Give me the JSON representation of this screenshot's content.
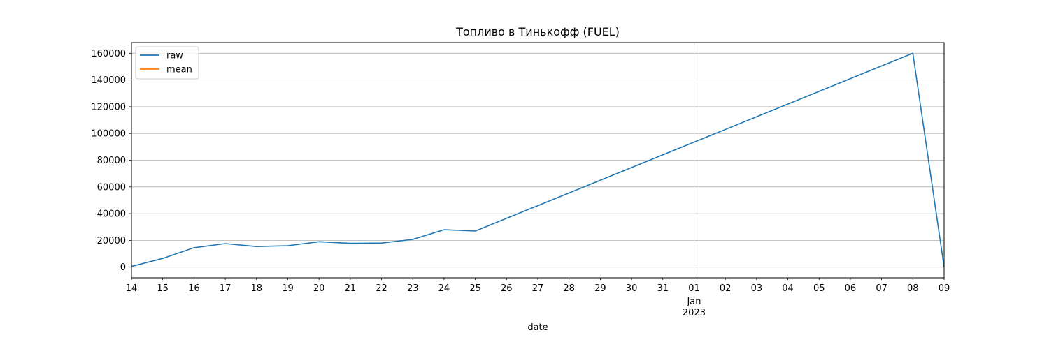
{
  "chart_data": {
    "type": "line",
    "title": "Топливо в Тинькофф (FUEL)",
    "xlabel": "date",
    "ylabel": "",
    "x_ticks": [
      {
        "date": "2022-12-14",
        "label": "14"
      },
      {
        "date": "2022-12-15",
        "label": "15"
      },
      {
        "date": "2022-12-16",
        "label": "16"
      },
      {
        "date": "2022-12-17",
        "label": "17"
      },
      {
        "date": "2022-12-18",
        "label": "18"
      },
      {
        "date": "2022-12-19",
        "label": "19"
      },
      {
        "date": "2022-12-20",
        "label": "20"
      },
      {
        "date": "2022-12-21",
        "label": "21"
      },
      {
        "date": "2022-12-22",
        "label": "22"
      },
      {
        "date": "2022-12-23",
        "label": "23"
      },
      {
        "date": "2022-12-24",
        "label": "24"
      },
      {
        "date": "2022-12-25",
        "label": "25"
      },
      {
        "date": "2022-12-26",
        "label": "26"
      },
      {
        "date": "2022-12-27",
        "label": "27"
      },
      {
        "date": "2022-12-28",
        "label": "28"
      },
      {
        "date": "2022-12-29",
        "label": "29"
      },
      {
        "date": "2022-12-30",
        "label": "30"
      },
      {
        "date": "2022-12-31",
        "label": "31"
      },
      {
        "date": "2023-01-01",
        "label": "01",
        "sublabels": [
          "Jan",
          "2023"
        ]
      },
      {
        "date": "2023-01-02",
        "label": "02"
      },
      {
        "date": "2023-01-03",
        "label": "03"
      },
      {
        "date": "2023-01-04",
        "label": "04"
      },
      {
        "date": "2023-01-05",
        "label": "05"
      },
      {
        "date": "2023-01-06",
        "label": "06"
      },
      {
        "date": "2023-01-07",
        "label": "07"
      },
      {
        "date": "2023-01-08",
        "label": "08"
      },
      {
        "date": "2023-01-09",
        "label": "09"
      }
    ],
    "xlim": [
      "2022-12-14",
      "2023-01-09"
    ],
    "y_ticks": [
      0,
      20000,
      40000,
      60000,
      80000,
      100000,
      120000,
      140000,
      160000
    ],
    "ylim": [
      -8000,
      168000
    ],
    "grid": true,
    "legend_position": "top-left",
    "series": [
      {
        "name": "raw",
        "color": "#1f77b4",
        "points": [
          {
            "x": "2022-12-14",
            "y": 500
          },
          {
            "x": "2022-12-15",
            "y": 6500
          },
          {
            "x": "2022-12-16",
            "y": 14500
          },
          {
            "x": "2022-12-17",
            "y": 17600
          },
          {
            "x": "2022-12-18",
            "y": 15400
          },
          {
            "x": "2022-12-19",
            "y": 16000
          },
          {
            "x": "2022-12-20",
            "y": 19000
          },
          {
            "x": "2022-12-21",
            "y": 17800
          },
          {
            "x": "2022-12-22",
            "y": 18000
          },
          {
            "x": "2022-12-23",
            "y": 20700
          },
          {
            "x": "2022-12-24",
            "y": 28000
          },
          {
            "x": "2022-12-25",
            "y": 27000
          },
          {
            "x": "2023-01-08",
            "y": 160000
          },
          {
            "x": "2023-01-09",
            "y": 0
          }
        ]
      },
      {
        "name": "mean",
        "color": "#ff7f0e",
        "points": []
      }
    ]
  }
}
